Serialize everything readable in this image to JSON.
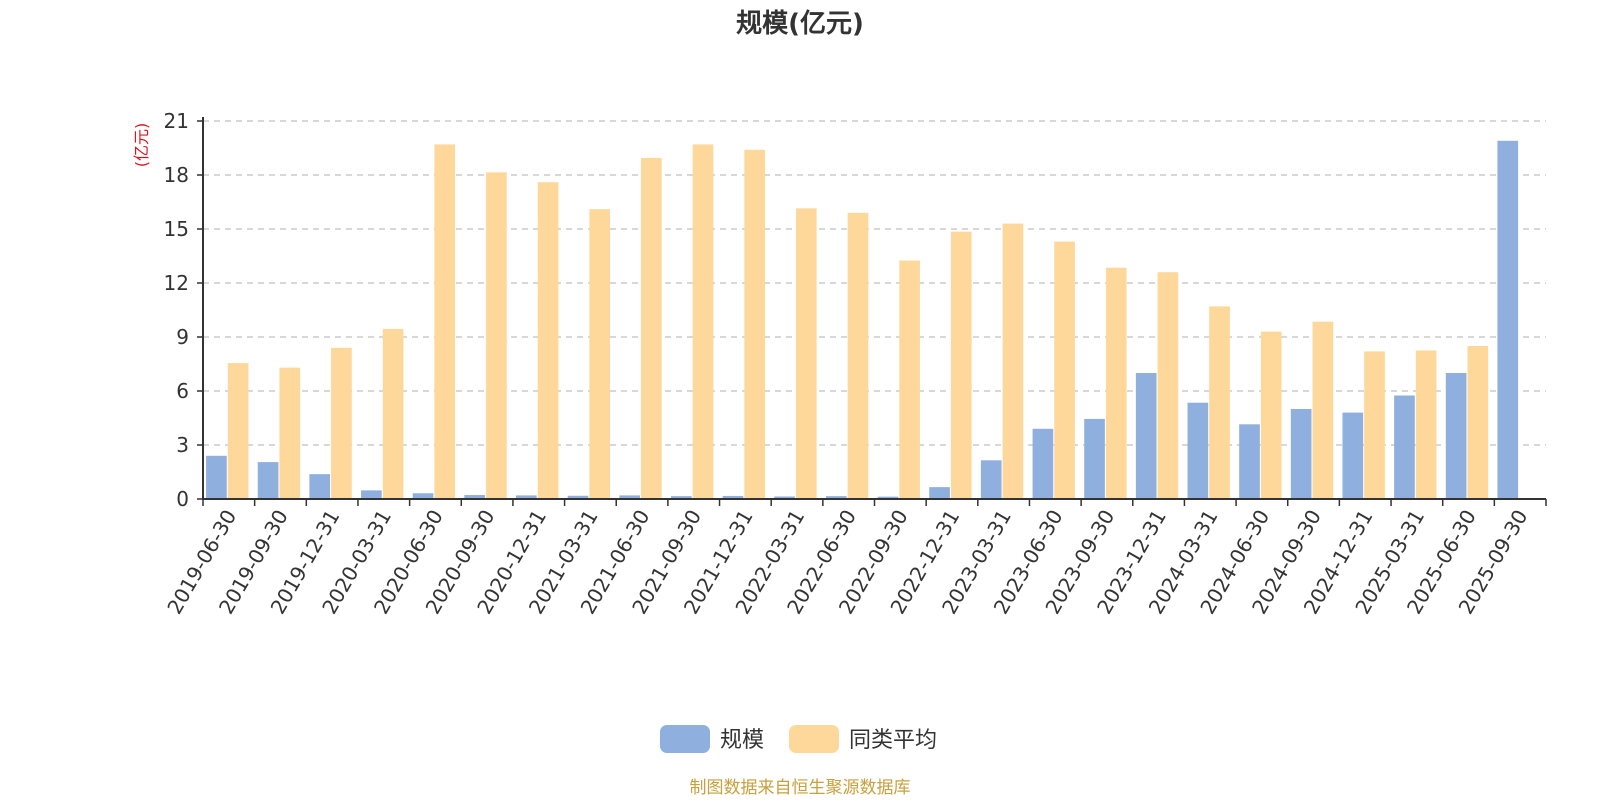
{
  "chart_data": {
    "type": "bar",
    "title": "规模(亿元)",
    "ylabel": "(亿元)",
    "ylim": [
      0,
      21
    ],
    "yticks": [
      0,
      3,
      6,
      9,
      12,
      15,
      18,
      21
    ],
    "grid": true,
    "legend_position": "bottom-center",
    "categories": [
      "2019-06-30",
      "2019-09-30",
      "2019-12-31",
      "2020-03-31",
      "2020-06-30",
      "2020-09-30",
      "2020-12-31",
      "2021-03-31",
      "2021-06-30",
      "2021-09-30",
      "2021-12-31",
      "2022-03-31",
      "2022-06-30",
      "2022-09-30",
      "2022-12-31",
      "2023-03-31",
      "2023-06-30",
      "2023-09-30",
      "2023-12-31",
      "2024-03-31",
      "2024-06-30",
      "2024-09-30",
      "2024-12-31",
      "2025-03-31",
      "2025-06-30",
      "2025-09-30"
    ],
    "series": [
      {
        "name": "规模",
        "color": "#8fb0de",
        "values": [
          2.4,
          2.05,
          1.38,
          0.48,
          0.32,
          0.22,
          0.2,
          0.18,
          0.2,
          0.16,
          0.17,
          0.14,
          0.16,
          0.13,
          0.66,
          2.15,
          3.9,
          4.45,
          7.0,
          5.35,
          4.15,
          5.0,
          4.8,
          5.75,
          7.0,
          19.9
        ]
      },
      {
        "name": "同类平均",
        "color": "#fdd89a",
        "values": [
          7.55,
          7.3,
          8.4,
          9.45,
          19.7,
          18.15,
          17.6,
          16.1,
          18.95,
          19.7,
          19.4,
          16.15,
          15.9,
          13.25,
          14.85,
          15.3,
          14.3,
          12.85,
          12.6,
          10.7,
          9.3,
          9.85,
          8.2,
          8.25,
          8.5,
          null
        ]
      }
    ],
    "source": "制图数据来自恒生聚源数据库"
  },
  "colors": {
    "title": "#333333",
    "unit_label": "#e0141e",
    "axis": "#333333",
    "grid": "#cccccc",
    "source": "#c8a03c"
  }
}
